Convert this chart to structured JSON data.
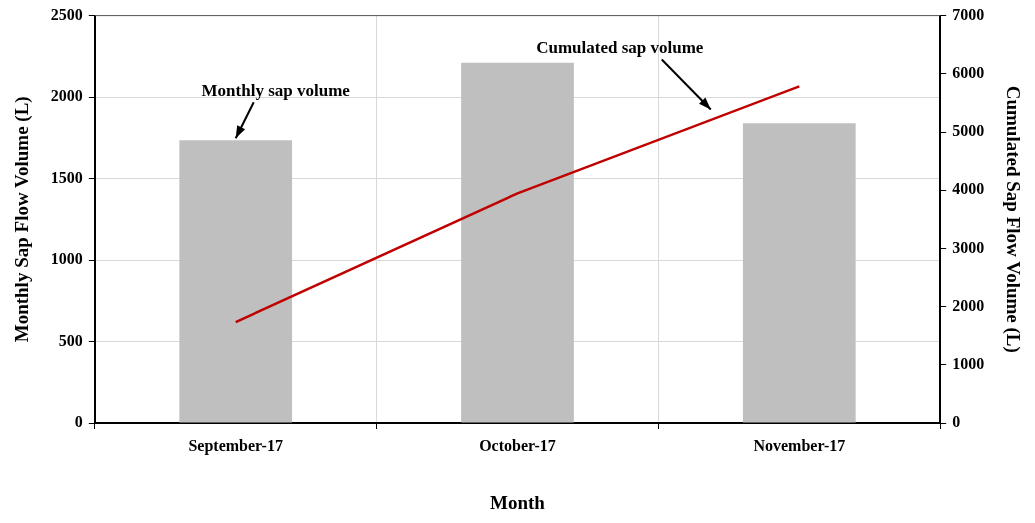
{
  "chart_data": {
    "type": "bar",
    "xlabel": "Month",
    "ylabel": "Monthly Sap Flow Volume (L)",
    "y2label": "Cumulated Sap Flow Volume (L)",
    "categories": [
      "September-17",
      "October-17",
      "November-17"
    ],
    "series": [
      {
        "color": "#bfbfbf",
        "values": [
          1735,
          2210,
          1840
        ]
      },
      {
        "type": "line",
        "axis": "y2",
        "color": "#c00000",
        "values": [
          1735,
          3945,
          5785
        ]
      }
    ],
    "ylim": [
      0,
      2500
    ],
    "yticks": [
      0,
      500,
      1000,
      1500,
      2000,
      2500
    ],
    "y2lim": [
      0,
      7000
    ],
    "y2ticks": [
      0,
      1000,
      2000,
      3000,
      4000,
      5000,
      6000,
      7000
    ],
    "annotations": [
      {
        "text": "Monthly sap volume",
        "x": "September-17",
        "y": 1735
      },
      "Cumulated sap volume"
    ],
    "grid": true,
    "legend": false,
    "marker": "none",
    "line_style": "solid"
  }
}
